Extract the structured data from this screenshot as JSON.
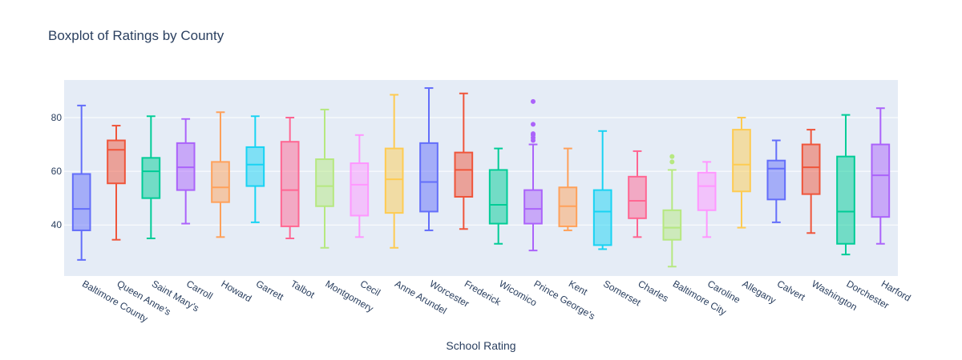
{
  "chart_data": {
    "type": "box",
    "title": "Boxplot of Ratings by County",
    "xlabel": "School Rating",
    "ylabel": "",
    "ylim": [
      21,
      94
    ],
    "yticks": [
      40,
      60,
      80
    ],
    "grid": true,
    "legend": "none",
    "series": [
      {
        "category": "Baltimore County",
        "color": "#636efa",
        "min": 27,
        "q1": 38,
        "median": 46,
        "q3": 59,
        "max": 84.5,
        "outliers": []
      },
      {
        "category": "Queen Anne's",
        "color": "#ef553b",
        "min": 34.5,
        "q1": 55.5,
        "median": 68,
        "q3": 71.5,
        "max": 77,
        "outliers": []
      },
      {
        "category": "Saint Mary's",
        "color": "#00cc96",
        "min": 35,
        "q1": 50,
        "median": 60,
        "q3": 65,
        "max": 80.5,
        "outliers": []
      },
      {
        "category": "Carroll",
        "color": "#ab63fa",
        "min": 40.5,
        "q1": 53,
        "median": 61.5,
        "q3": 70.5,
        "max": 79.5,
        "outliers": []
      },
      {
        "category": "Howard",
        "color": "#ffa15a",
        "min": 35.5,
        "q1": 48.5,
        "median": 54,
        "q3": 63.5,
        "max": 82,
        "outliers": []
      },
      {
        "category": "Garrett",
        "color": "#19d3f3",
        "min": 41,
        "q1": 54.5,
        "median": 62.5,
        "q3": 69,
        "max": 80.5,
        "outliers": []
      },
      {
        "category": "Talbot",
        "color": "#ff6692",
        "min": 35,
        "q1": 39.5,
        "median": 53,
        "q3": 71,
        "max": 80,
        "outliers": []
      },
      {
        "category": "Montgomery",
        "color": "#b6e880",
        "min": 31.5,
        "q1": 47,
        "median": 54.5,
        "q3": 64.5,
        "max": 83,
        "outliers": []
      },
      {
        "category": "Cecil",
        "color": "#ff97ff",
        "min": 35.5,
        "q1": 43.5,
        "median": 55,
        "q3": 63,
        "max": 73.5,
        "outliers": []
      },
      {
        "category": "Anne Arundel",
        "color": "#fecb52",
        "min": 31.5,
        "q1": 44.5,
        "median": 57,
        "q3": 68.5,
        "max": 88.5,
        "outliers": []
      },
      {
        "category": "Worcester",
        "color": "#636efa",
        "min": 38,
        "q1": 45,
        "median": 56,
        "q3": 70.5,
        "max": 91,
        "outliers": []
      },
      {
        "category": "Frederick",
        "color": "#ef553b",
        "min": 38.5,
        "q1": 50.5,
        "median": 60.5,
        "q3": 67,
        "max": 89,
        "outliers": []
      },
      {
        "category": "Wicomico",
        "color": "#00cc96",
        "min": 33,
        "q1": 40.5,
        "median": 47.5,
        "q3": 60.5,
        "max": 68.5,
        "outliers": []
      },
      {
        "category": "Prince George's",
        "color": "#ab63fa",
        "min": 30.5,
        "q1": 40.5,
        "median": 46,
        "q3": 53,
        "max": 70,
        "outliers": [
          71.5,
          72.5,
          73.5,
          74,
          77.5,
          86
        ]
      },
      {
        "category": "Kent",
        "color": "#ffa15a",
        "min": 38,
        "q1": 39.5,
        "median": 47,
        "q3": 54,
        "max": 68.5,
        "outliers": []
      },
      {
        "category": "Somerset",
        "color": "#19d3f3",
        "min": 31,
        "q1": 32.5,
        "median": 45,
        "q3": 53,
        "max": 75,
        "outliers": []
      },
      {
        "category": "Charles",
        "color": "#ff6692",
        "min": 35.5,
        "q1": 42.5,
        "median": 49,
        "q3": 58,
        "max": 67.5,
        "outliers": []
      },
      {
        "category": "Baltimore City",
        "color": "#b6e880",
        "min": 24.5,
        "q1": 34.5,
        "median": 39,
        "q3": 45.5,
        "max": 60.5,
        "outliers": [
          63.5,
          65.5
        ]
      },
      {
        "category": "Caroline",
        "color": "#ff97ff",
        "min": 35.5,
        "q1": 45.5,
        "median": 54.5,
        "q3": 59.5,
        "max": 63.5,
        "outliers": []
      },
      {
        "category": "Allegany",
        "color": "#fecb52",
        "min": 39,
        "q1": 52.5,
        "median": 62.5,
        "q3": 75.5,
        "max": 80,
        "outliers": []
      },
      {
        "category": "Calvert",
        "color": "#636efa",
        "min": 41,
        "q1": 49.5,
        "median": 61,
        "q3": 64,
        "max": 71.5,
        "outliers": []
      },
      {
        "category": "Washington",
        "color": "#ef553b",
        "min": 37,
        "q1": 51.5,
        "median": 61.5,
        "q3": 70,
        "max": 75.5,
        "outliers": []
      },
      {
        "category": "Dorchester",
        "color": "#00cc96",
        "min": 29,
        "q1": 33,
        "median": 45,
        "q3": 65.5,
        "max": 81,
        "outliers": []
      },
      {
        "category": "Harford",
        "color": "#ab63fa",
        "min": 33,
        "q1": 43,
        "median": 58.5,
        "q3": 70,
        "max": 83.5,
        "outliers": []
      }
    ]
  }
}
